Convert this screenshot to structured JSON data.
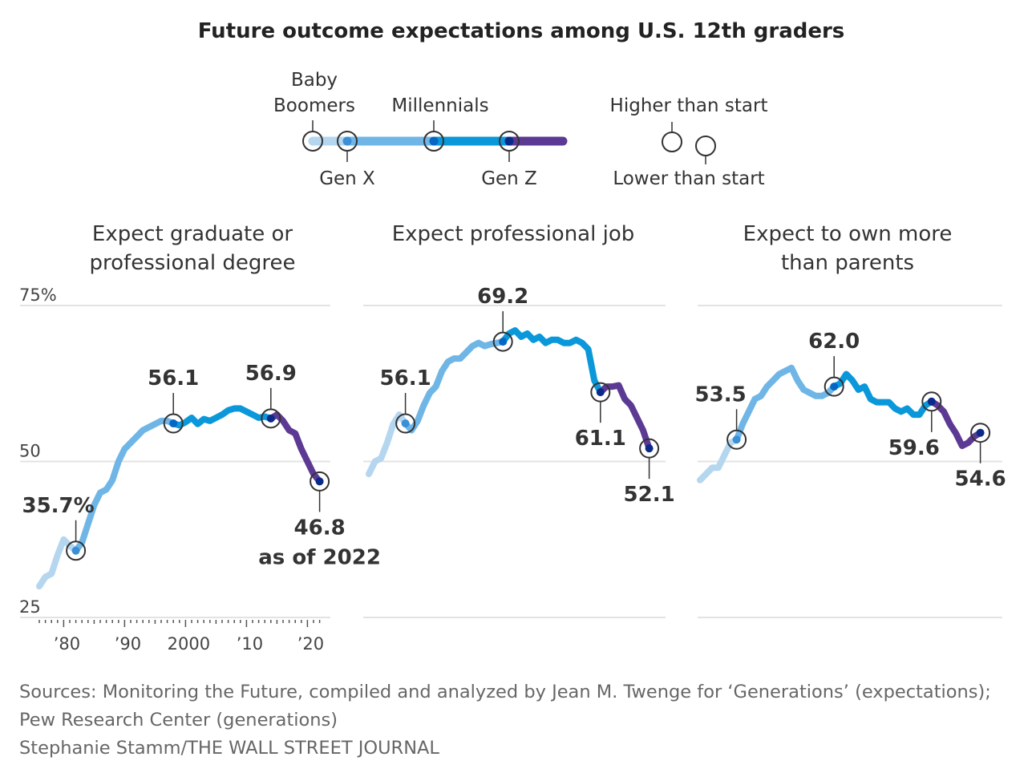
{
  "chart_data": {
    "type": "line",
    "title": "Future outcome expectations among U.S. 12th graders",
    "legend": {
      "generations": [
        {
          "name": "Baby Boomers",
          "start_year": 1976,
          "color": "#b5d6ef",
          "dot": "#b5d6ef"
        },
        {
          "name": "Gen X",
          "start_year": 1982,
          "color": "#6fb6e6",
          "dot": "#3a8fd6"
        },
        {
          "name": "Millennials",
          "start_year": 1998,
          "color": "#0a98da",
          "dot": "#0566c4"
        },
        {
          "name": "Gen Z",
          "start_year": 2014,
          "color": "#5c3a94",
          "dot": "#0a2a8a"
        }
      ],
      "higher_label": "Higher than start",
      "lower_label": "Lower than start"
    },
    "y_ticks": [
      "75%",
      "50",
      "25"
    ],
    "y_values": [
      75,
      50,
      25
    ],
    "ylim": [
      25,
      75
    ],
    "x_ticks": [
      {
        "year": 1980,
        "label": "’80"
      },
      {
        "year": 1990,
        "label": "’90"
      },
      {
        "year": 2000,
        "label": "2000"
      },
      {
        "year": 2010,
        "label": "’10"
      },
      {
        "year": 2020,
        "label": "’20"
      }
    ],
    "xlim": [
      1976,
      2022
    ],
    "panels": [
      {
        "title_lines": [
          "Expect graduate or",
          "professional degree"
        ],
        "x": [
          1976,
          1977,
          1978,
          1979,
          1980,
          1981,
          1982,
          1983,
          1984,
          1985,
          1986,
          1987,
          1988,
          1989,
          1990,
          1991,
          1992,
          1993,
          1994,
          1995,
          1996,
          1997,
          1998,
          1999,
          2000,
          2001,
          2002,
          2003,
          2004,
          2005,
          2006,
          2007,
          2008,
          2009,
          2010,
          2011,
          2012,
          2013,
          2014,
          2015,
          2016,
          2017,
          2018,
          2019,
          2020,
          2021,
          2022
        ],
        "values": [
          30,
          31.5,
          32,
          35,
          37.5,
          36.5,
          35.7,
          37,
          40,
          43,
          45,
          45.5,
          47,
          50,
          52,
          53,
          54,
          55,
          55.5,
          56,
          56.5,
          56.5,
          56.1,
          55.8,
          56.3,
          57,
          56,
          56.8,
          56.5,
          57,
          57.5,
          58.2,
          58.5,
          58.5,
          58,
          57.5,
          57,
          57.2,
          56.9,
          57.5,
          56.5,
          55,
          54.5,
          52,
          50,
          48,
          46.8
        ],
        "annotations": [
          {
            "year": 1982,
            "value": 35.7,
            "lines": [
              "35.7%"
            ],
            "side": "above"
          },
          {
            "year": 1998,
            "value": 56.1,
            "lines": [
              "56.1"
            ],
            "side": "above"
          },
          {
            "year": 2014,
            "value": 56.9,
            "lines": [
              "56.9"
            ],
            "side": "above"
          },
          {
            "year": 2022,
            "value": 46.8,
            "lines": [
              "46.8",
              "as of 2022"
            ],
            "side": "below"
          }
        ]
      },
      {
        "title_lines": [
          "Expect professional job"
        ],
        "x": [
          1976,
          1977,
          1978,
          1979,
          1980,
          1981,
          1982,
          1983,
          1984,
          1985,
          1986,
          1987,
          1988,
          1989,
          1990,
          1991,
          1992,
          1993,
          1994,
          1995,
          1996,
          1997,
          1998,
          1999,
          2000,
          2001,
          2002,
          2003,
          2004,
          2005,
          2006,
          2007,
          2008,
          2009,
          2010,
          2011,
          2012,
          2013,
          2014,
          2015,
          2016,
          2017,
          2018,
          2019,
          2020,
          2021,
          2022
        ],
        "values": [
          48,
          50,
          50.5,
          53,
          56,
          57.5,
          56.1,
          55,
          56.5,
          59,
          61,
          62,
          64.5,
          66,
          66.5,
          66.5,
          67.5,
          68.5,
          69,
          68.5,
          68.8,
          69,
          69.2,
          70.5,
          71,
          70,
          70.5,
          69.5,
          70,
          69,
          69.5,
          69.5,
          69,
          69,
          69.5,
          69,
          68,
          63,
          61.1,
          62,
          62,
          62.2,
          60,
          59,
          57,
          55,
          52.1
        ],
        "annotations": [
          {
            "year": 1982,
            "value": 56.1,
            "lines": [
              "56.1"
            ],
            "side": "above"
          },
          {
            "year": 1998,
            "value": 69.2,
            "lines": [
              "69.2"
            ],
            "side": "above"
          },
          {
            "year": 2014,
            "value": 61.1,
            "lines": [
              "61.1"
            ],
            "side": "below"
          },
          {
            "year": 2022,
            "value": 52.1,
            "lines": [
              "52.1"
            ],
            "side": "below"
          }
        ]
      },
      {
        "title_lines": [
          "Expect to own more",
          "than parents"
        ],
        "x": [
          1976,
          1977,
          1978,
          1979,
          1980,
          1981,
          1982,
          1983,
          1984,
          1985,
          1986,
          1987,
          1988,
          1989,
          1990,
          1991,
          1992,
          1993,
          1994,
          1995,
          1996,
          1997,
          1998,
          1999,
          2000,
          2001,
          2002,
          2003,
          2004,
          2005,
          2006,
          2007,
          2008,
          2009,
          2010,
          2011,
          2012,
          2013,
          2014,
          2015,
          2016,
          2017,
          2018,
          2019,
          2020,
          2021,
          2022
        ],
        "values": [
          47,
          48,
          49,
          49,
          51,
          53,
          53.5,
          56,
          58,
          60,
          60.5,
          62,
          63,
          64,
          64.5,
          65,
          63,
          61.5,
          61,
          60.5,
          60.5,
          61,
          62,
          62.5,
          64,
          63,
          61.5,
          62,
          60,
          59.5,
          59.5,
          59.5,
          58.5,
          58,
          58.5,
          57.5,
          57.5,
          59,
          59.6,
          59,
          58,
          56,
          54.5,
          52.5,
          53,
          54,
          54.6
        ],
        "annotations": [
          {
            "year": 1982,
            "value": 53.5,
            "lines": [
              "53.5"
            ],
            "side": "above"
          },
          {
            "year": 1998,
            "value": 62.0,
            "lines": [
              "62.0"
            ],
            "side": "above"
          },
          {
            "year": 2014,
            "value": 59.6,
            "lines": [
              "59.6"
            ],
            "side": "below"
          },
          {
            "year": 2022,
            "value": 54.6,
            "lines": [
              "54.6"
            ],
            "side": "below"
          }
        ]
      }
    ]
  },
  "sources": [
    "Sources: Monitoring the Future, compiled and analyzed by Jean M. Twenge for  ‘Generations’ (expectations);",
    "Pew Research Center (generations)",
    "Stephanie Stamm/THE WALL STREET JOURNAL"
  ]
}
